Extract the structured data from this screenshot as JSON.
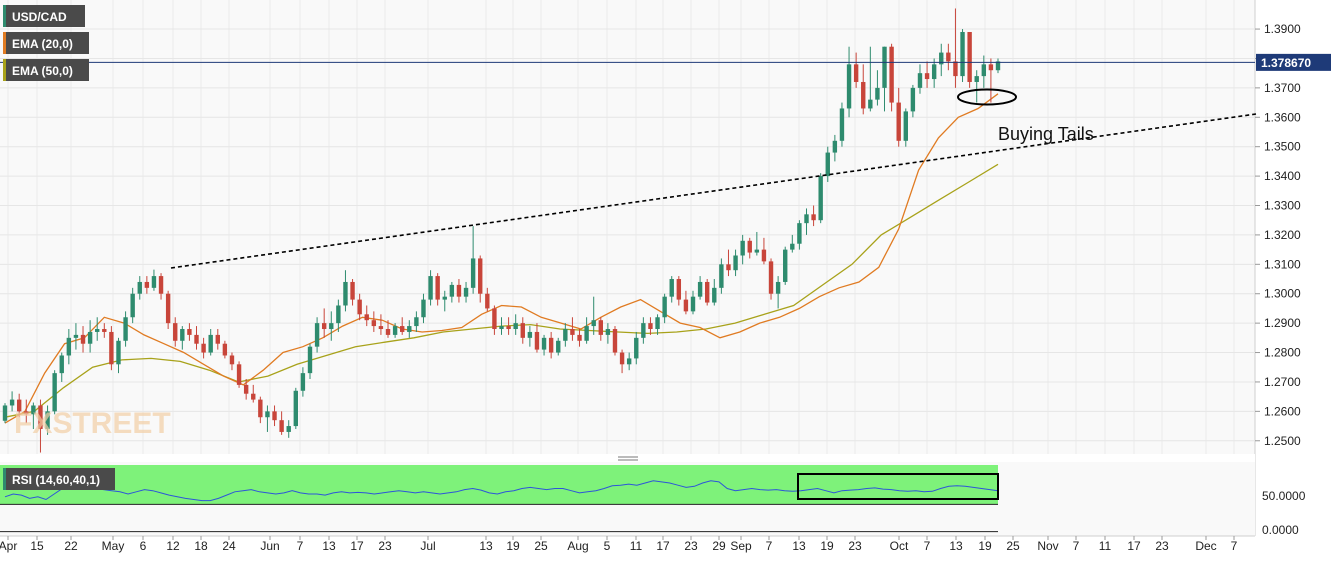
{
  "legend": {
    "symbol": "USD/CAD",
    "ema20": "EMA (20,0)",
    "ema50": "EMA (50,0)",
    "rsi": "RSI (14,60,40,1)"
  },
  "colors": {
    "bull": "#2e8b6e",
    "bear": "#c8453a",
    "ema20": "#e07b22",
    "ema50": "#a8a21a",
    "rsi_line": "#2d55d9",
    "rsi_upper_zone": "#7ef27a",
    "rsi_lower_zone": "#fa8080",
    "price_line": "#1e3a78",
    "trendline": "#000000"
  },
  "chart_data": [
    {
      "type": "candlestick",
      "price_label": "1.378670",
      "current_price": 1.37867,
      "ylim": [
        1.2455,
        1.3975
      ],
      "yticks": [
        "1.2500",
        "1.2600",
        "1.2700",
        "1.2800",
        "1.2900",
        "1.3000",
        "1.3100",
        "1.3200",
        "1.3300",
        "1.3400",
        "1.3500",
        "1.3600",
        "1.3700",
        "1.3800",
        "1.3900"
      ],
      "xticks": [
        "Apr",
        "15",
        "22",
        "May",
        "6",
        "12",
        "18",
        "24",
        "Jun",
        "7",
        "13",
        "17",
        "23",
        "Jul",
        "13",
        "19",
        "25",
        "Aug",
        "5",
        "11",
        "17",
        "23",
        "29",
        "Sep",
        "7",
        "13",
        "19",
        "23",
        "Oct",
        "7",
        "13",
        "19",
        "25",
        "Nov",
        "7",
        "11",
        "17",
        "23",
        "Dec",
        "7"
      ],
      "annotation": "Buying Tails",
      "trendline": [
        [
          1.3082,
          1.36
        ]
      ],
      "candles": [
        [
          1.2568,
          1.2628,
          1.256,
          1.262
        ],
        [
          1.262,
          1.2668,
          1.26,
          1.264
        ],
        [
          1.264,
          1.266,
          1.258,
          1.26
        ],
        [
          1.26,
          1.264,
          1.256,
          1.259
        ],
        [
          1.259,
          1.263,
          1.254,
          1.262
        ],
        [
          1.262,
          1.264,
          1.246,
          1.254
        ],
        [
          1.254,
          1.262,
          1.252,
          1.26
        ],
        [
          1.26,
          1.274,
          1.259,
          1.273
        ],
        [
          1.273,
          1.28,
          1.27,
          1.279
        ],
        [
          1.279,
          1.288,
          1.276,
          1.285
        ],
        [
          1.285,
          1.29,
          1.281,
          1.286
        ],
        [
          1.286,
          1.289,
          1.28,
          1.283
        ],
        [
          1.283,
          1.291,
          1.28,
          1.287
        ],
        [
          1.287,
          1.292,
          1.284,
          1.288
        ],
        [
          1.288,
          1.29,
          1.285,
          1.287
        ],
        [
          1.287,
          1.289,
          1.274,
          1.276
        ],
        [
          1.276,
          1.285,
          1.273,
          1.284
        ],
        [
          1.284,
          1.294,
          1.282,
          1.292
        ],
        [
          1.292,
          1.302,
          1.29,
          1.3
        ],
        [
          1.3,
          1.306,
          1.298,
          1.304
        ],
        [
          1.304,
          1.306,
          1.3,
          1.302
        ],
        [
          1.302,
          1.3082,
          1.301,
          1.306
        ],
        [
          1.306,
          1.307,
          1.298,
          1.3
        ],
        [
          1.3,
          1.301,
          1.288,
          1.29
        ],
        [
          1.29,
          1.292,
          1.282,
          1.284
        ],
        [
          1.284,
          1.289,
          1.281,
          1.288
        ],
        [
          1.288,
          1.29,
          1.284,
          1.286
        ],
        [
          1.286,
          1.289,
          1.281,
          1.283
        ],
        [
          1.283,
          1.285,
          1.278,
          1.28
        ],
        [
          1.28,
          1.288,
          1.279,
          1.286
        ],
        [
          1.286,
          1.288,
          1.281,
          1.283
        ],
        [
          1.283,
          1.284,
          1.278,
          1.279
        ],
        [
          1.279,
          1.28,
          1.274,
          1.276
        ],
        [
          1.276,
          1.277,
          1.268,
          1.269
        ],
        [
          1.269,
          1.271,
          1.264,
          1.266
        ],
        [
          1.266,
          1.269,
          1.263,
          1.264
        ],
        [
          1.264,
          1.265,
          1.256,
          1.258
        ],
        [
          1.258,
          1.262,
          1.253,
          1.26
        ],
        [
          1.26,
          1.262,
          1.255,
          1.257
        ],
        [
          1.257,
          1.26,
          1.252,
          1.253
        ],
        [
          1.253,
          1.257,
          1.251,
          1.255
        ],
        [
          1.255,
          1.268,
          1.254,
          1.267
        ],
        [
          1.267,
          1.275,
          1.265,
          1.273
        ],
        [
          1.273,
          1.283,
          1.271,
          1.282
        ],
        [
          1.282,
          1.292,
          1.28,
          1.29
        ],
        [
          1.29,
          1.295,
          1.285,
          1.288
        ],
        [
          1.288,
          1.294,
          1.284,
          1.29
        ],
        [
          1.29,
          1.298,
          1.287,
          1.296
        ],
        [
          1.296,
          1.308,
          1.294,
          1.304
        ],
        [
          1.304,
          1.305,
          1.296,
          1.298
        ],
        [
          1.298,
          1.3,
          1.291,
          1.293
        ],
        [
          1.293,
          1.296,
          1.289,
          1.291
        ],
        [
          1.291,
          1.294,
          1.287,
          1.289
        ],
        [
          1.289,
          1.293,
          1.286,
          1.288
        ],
        [
          1.288,
          1.291,
          1.285,
          1.286
        ],
        [
          1.286,
          1.29,
          1.285,
          1.289
        ],
        [
          1.289,
          1.292,
          1.286,
          1.287
        ],
        [
          1.287,
          1.291,
          1.285,
          1.289
        ],
        [
          1.289,
          1.294,
          1.287,
          1.292
        ],
        [
          1.292,
          1.3,
          1.29,
          1.298
        ],
        [
          1.298,
          1.308,
          1.296,
          1.306
        ],
        [
          1.306,
          1.307,
          1.296,
          1.298
        ],
        [
          1.298,
          1.301,
          1.294,
          1.299
        ],
        [
          1.299,
          1.304,
          1.297,
          1.303
        ],
        [
          1.303,
          1.305,
          1.297,
          1.299
        ],
        [
          1.299,
          1.304,
          1.297,
          1.302
        ],
        [
          1.302,
          1.323,
          1.3,
          1.312
        ],
        [
          1.312,
          1.313,
          1.297,
          1.3
        ],
        [
          1.3,
          1.302,
          1.294,
          1.295
        ],
        [
          1.295,
          1.296,
          1.286,
          1.288
        ],
        [
          1.288,
          1.292,
          1.286,
          1.289
        ],
        [
          1.289,
          1.292,
          1.286,
          1.288
        ],
        [
          1.288,
          1.293,
          1.286,
          1.29
        ],
        [
          1.29,
          1.292,
          1.283,
          1.285
        ],
        [
          1.285,
          1.289,
          1.282,
          1.287
        ],
        [
          1.287,
          1.29,
          1.28,
          1.281
        ],
        [
          1.281,
          1.286,
          1.279,
          1.285
        ],
        [
          1.285,
          1.287,
          1.278,
          1.28
        ],
        [
          1.28,
          1.285,
          1.279,
          1.284
        ],
        [
          1.284,
          1.29,
          1.282,
          1.288
        ],
        [
          1.288,
          1.292,
          1.284,
          1.286
        ],
        [
          1.286,
          1.288,
          1.282,
          1.284
        ],
        [
          1.284,
          1.292,
          1.283,
          1.289
        ],
        [
          1.289,
          1.299,
          1.286,
          1.291
        ],
        [
          1.291,
          1.292,
          1.284,
          1.286
        ],
        [
          1.286,
          1.29,
          1.283,
          1.288
        ],
        [
          1.288,
          1.289,
          1.279,
          1.28
        ],
        [
          1.28,
          1.281,
          1.273,
          1.276
        ],
        [
          1.276,
          1.28,
          1.274,
          1.278
        ],
        [
          1.278,
          1.287,
          1.276,
          1.285
        ],
        [
          1.285,
          1.292,
          1.283,
          1.29
        ],
        [
          1.29,
          1.292,
          1.286,
          1.288
        ],
        [
          1.288,
          1.293,
          1.286,
          1.292
        ],
        [
          1.292,
          1.3,
          1.29,
          1.299
        ],
        [
          1.299,
          1.306,
          1.297,
          1.305
        ],
        [
          1.305,
          1.306,
          1.296,
          1.298
        ],
        [
          1.298,
          1.301,
          1.293,
          1.294
        ],
        [
          1.294,
          1.301,
          1.293,
          1.299
        ],
        [
          1.299,
          1.306,
          1.298,
          1.304
        ],
        [
          1.304,
          1.305,
          1.296,
          1.297
        ],
        [
          1.297,
          1.305,
          1.296,
          1.302
        ],
        [
          1.302,
          1.312,
          1.3,
          1.31
        ],
        [
          1.31,
          1.315,
          1.306,
          1.308
        ],
        [
          1.308,
          1.315,
          1.306,
          1.313
        ],
        [
          1.313,
          1.32,
          1.31,
          1.318
        ],
        [
          1.318,
          1.319,
          1.312,
          1.314
        ],
        [
          1.314,
          1.321,
          1.313,
          1.315
        ],
        [
          1.315,
          1.319,
          1.31,
          1.311
        ],
        [
          1.311,
          1.312,
          1.298,
          1.3
        ],
        [
          1.3,
          1.306,
          1.295,
          1.304
        ],
        [
          1.304,
          1.316,
          1.303,
          1.315
        ],
        [
          1.315,
          1.32,
          1.314,
          1.317
        ],
        [
          1.317,
          1.325,
          1.315,
          1.324
        ],
        [
          1.324,
          1.329,
          1.32,
          1.327
        ],
        [
          1.327,
          1.33,
          1.323,
          1.325
        ],
        [
          1.325,
          1.341,
          1.324,
          1.34
        ],
        [
          1.34,
          1.35,
          1.338,
          1.348
        ],
        [
          1.348,
          1.354,
          1.345,
          1.352
        ],
        [
          1.352,
          1.365,
          1.35,
          1.363
        ],
        [
          1.363,
          1.384,
          1.36,
          1.378
        ],
        [
          1.378,
          1.382,
          1.37,
          1.372
        ],
        [
          1.372,
          1.378,
          1.361,
          1.363
        ],
        [
          1.363,
          1.384,
          1.362,
          1.366
        ],
        [
          1.366,
          1.376,
          1.364,
          1.37
        ],
        [
          1.37,
          1.384,
          1.362,
          1.384
        ],
        [
          1.384,
          1.385,
          1.362,
          1.365
        ],
        [
          1.365,
          1.37,
          1.35,
          1.352
        ],
        [
          1.352,
          1.363,
          1.35,
          1.362
        ],
        [
          1.362,
          1.371,
          1.36,
          1.37
        ],
        [
          1.37,
          1.378,
          1.368,
          1.375
        ],
        [
          1.375,
          1.379,
          1.37,
          1.373
        ],
        [
          1.373,
          1.38,
          1.37,
          1.378
        ],
        [
          1.378,
          1.385,
          1.374,
          1.382
        ],
        [
          1.382,
          1.385,
          1.376,
          1.379
        ],
        [
          1.379,
          1.397,
          1.37,
          1.374
        ],
        [
          1.374,
          1.39,
          1.372,
          1.389
        ],
        [
          1.389,
          1.389,
          1.37,
          1.372
        ],
        [
          1.372,
          1.376,
          1.365,
          1.374
        ],
        [
          1.374,
          1.381,
          1.37,
          1.378
        ],
        [
          1.378,
          1.38,
          1.365,
          1.376
        ],
        [
          1.376,
          1.38,
          1.375,
          1.379
        ]
      ],
      "ema20": [
        1.256,
        1.26,
        1.273,
        1.283,
        1.285,
        1.292,
        1.29,
        1.286,
        1.283,
        1.28,
        1.276,
        1.272,
        1.269,
        1.274,
        1.28,
        1.282,
        1.285,
        1.289,
        1.292,
        1.291,
        1.288,
        1.287,
        1.2875,
        1.2885,
        1.293,
        1.296,
        1.2955,
        1.292,
        1.29,
        1.288,
        1.292,
        1.2955,
        1.298,
        1.294,
        1.29,
        1.2885,
        1.285,
        1.287,
        1.29,
        1.292,
        1.295,
        1.299,
        1.302,
        1.304,
        1.309,
        1.322,
        1.342,
        1.353,
        1.36,
        1.363,
        1.368
      ],
      "ema50": [
        1.258,
        1.26,
        1.268,
        1.275,
        1.2775,
        1.278,
        1.277,
        1.274,
        1.27,
        1.272,
        1.276,
        1.279,
        1.282,
        1.2835,
        1.285,
        1.287,
        1.288,
        1.289,
        1.2895,
        1.288,
        1.2875,
        1.287,
        1.2865,
        1.287,
        1.288,
        1.29,
        1.293,
        1.296,
        1.303,
        1.31,
        1.32,
        1.326,
        1.332,
        1.338,
        1.344
      ],
      "ema_end_prices": {
        "ema20": 1.368,
        "ema50": 1.344
      }
    },
    {
      "type": "line",
      "name": "RSI (14,60,40,1)",
      "ytick_label": "50.0000",
      "ytick_label_low": "0.0000",
      "ylim": [
        0,
        100
      ],
      "upper_zone": [
        60,
        100
      ],
      "lower_zone": [
        0,
        40
      ],
      "values": [
        55,
        60,
        58,
        52,
        55,
        50,
        60,
        70,
        74,
        72,
        72,
        70,
        68,
        66,
        64,
        60,
        64,
        68,
        66,
        62,
        58,
        55,
        52,
        50,
        48,
        48,
        52,
        58,
        64,
        66,
        68,
        64,
        62,
        60,
        62,
        66,
        62,
        60,
        60,
        58,
        62,
        64,
        62,
        63,
        62,
        60,
        62,
        64,
        66,
        64,
        62,
        64,
        62,
        60,
        62,
        64,
        68,
        70,
        67,
        62,
        60,
        64,
        66,
        70,
        72,
        70,
        68,
        70,
        70,
        66,
        62,
        64,
        66,
        70,
        75,
        76,
        78,
        76,
        80,
        84,
        82,
        80,
        76,
        72,
        74,
        80,
        84,
        82,
        70,
        66,
        68,
        70,
        68,
        67,
        68,
        66,
        65,
        66,
        68,
        70,
        66,
        62,
        66,
        67,
        68,
        70,
        71,
        69,
        68,
        66,
        65,
        66,
        64,
        65,
        70,
        74,
        75,
        74,
        72,
        70,
        68,
        66
      ]
    }
  ]
}
